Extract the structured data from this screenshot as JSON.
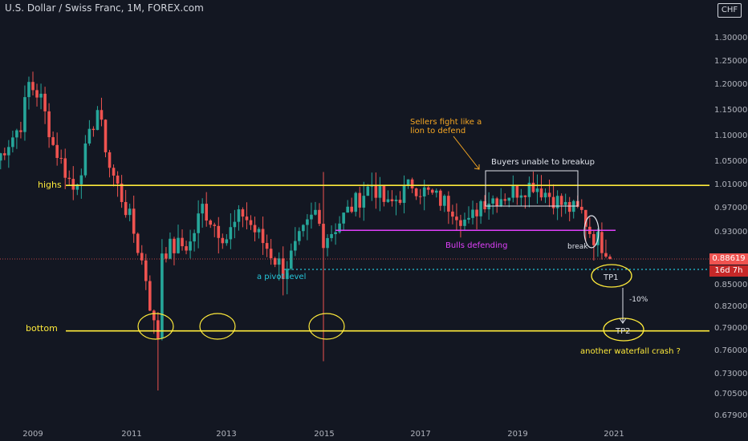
{
  "header": {
    "title": "U.S. Dollar / Swiss Franc, 1M, FOREX.com",
    "currency": "CHF"
  },
  "price_tags": {
    "last_price": "0.88619",
    "countdown": "16d 7h"
  },
  "colors": {
    "background": "#131722",
    "bull": "#26a69a",
    "bear": "#ef5350",
    "yellow": "#ffeb3b",
    "magenta": "#e040fb",
    "cyan": "#26c6da",
    "orange": "#f5a623",
    "axis_text": "#b2b5be"
  },
  "chart_data": {
    "type": "candlestick",
    "title": "U.S. Dollar / Swiss Franc, 1M, FOREX.com",
    "x_ticks": [
      "2009",
      "2011",
      "2013",
      "2015",
      "2017",
      "2019",
      "2021"
    ],
    "y_ticks": [
      "1.30000",
      "1.25000",
      "1.20000",
      "1.15000",
      "1.10000",
      "1.05000",
      "1.01000",
      "0.97000",
      "0.93000",
      "0.88619",
      "0.85000",
      "0.82000",
      "0.79000",
      "0.76000",
      "0.73000",
      "0.70500",
      "0.67900"
    ],
    "ylim": [
      0.67,
      1.33
    ],
    "grid": false,
    "anchors": [
      {
        "date": "2008-04",
        "price": 1.05
      },
      {
        "date": "2008-10",
        "price": 1.12
      },
      {
        "date": "2008-12",
        "price": 1.2
      },
      {
        "date": "2009-03",
        "price": 1.17
      },
      {
        "date": "2009-06",
        "price": 1.08
      },
      {
        "date": "2009-11",
        "price": 1.0
      },
      {
        "date": "2010-01",
        "price": 1.04
      },
      {
        "date": "2010-05",
        "price": 1.15
      },
      {
        "date": "2010-08",
        "price": 1.04
      },
      {
        "date": "2011-01",
        "price": 0.95
      },
      {
        "date": "2011-05",
        "price": 0.86
      },
      {
        "date": "2011-07",
        "price": 0.79
      },
      {
        "date": "2011-08",
        "price": 0.78
      },
      {
        "date": "2011-09",
        "price": 0.9
      },
      {
        "date": "2012-04",
        "price": 0.91
      },
      {
        "date": "2012-07",
        "price": 0.97
      },
      {
        "date": "2012-10",
        "price": 0.94
      },
      {
        "date": "2013-01",
        "price": 0.92
      },
      {
        "date": "2013-05",
        "price": 0.96
      },
      {
        "date": "2013-08",
        "price": 0.93
      },
      {
        "date": "2014-03",
        "price": 0.87
      },
      {
        "date": "2014-05",
        "price": 0.89
      },
      {
        "date": "2014-11",
        "price": 0.96
      },
      {
        "date": "2015-01",
        "price": 0.92
      },
      {
        "date": "2015-03",
        "price": 0.93
      },
      {
        "date": "2015-08",
        "price": 0.97
      },
      {
        "date": "2016-01",
        "price": 1.01
      },
      {
        "date": "2016-05",
        "price": 0.97
      },
      {
        "date": "2016-11",
        "price": 1.01
      },
      {
        "date": "2017-01",
        "price": 1.0
      },
      {
        "date": "2017-09",
        "price": 0.97
      },
      {
        "date": "2018-01",
        "price": 0.94
      },
      {
        "date": "2018-04",
        "price": 0.98
      },
      {
        "date": "2018-10",
        "price": 0.99
      },
      {
        "date": "2019-05",
        "price": 1.01
      },
      {
        "date": "2019-09",
        "price": 0.99
      },
      {
        "date": "2020-01",
        "price": 0.97
      },
      {
        "date": "2020-03",
        "price": 0.965
      },
      {
        "date": "2020-05",
        "price": 0.96
      },
      {
        "date": "2020-07",
        "price": 0.93
      },
      {
        "date": "2020-09",
        "price": 0.915
      },
      {
        "date": "2020-11",
        "price": 0.905
      },
      {
        "date": "2020-12",
        "price": 0.886
      }
    ],
    "spikes": [
      {
        "date": "2011-08",
        "low": 0.708
      },
      {
        "date": "2015-01",
        "high": 1.03,
        "low": 0.745
      }
    ],
    "levels": [
      {
        "name": "highs",
        "price": 1.007
      },
      {
        "name": "bottom",
        "price": 0.785
      },
      {
        "name": "pivot",
        "price": 0.871
      },
      {
        "name": "bulls-defending",
        "price": 0.931
      }
    ],
    "annotations": {
      "highs": "highs",
      "bottom": "bottom",
      "pivot": "a pivot level",
      "bulls": "Bulls defending",
      "sellers_1": "Sellers fight like a",
      "sellers_2": "lion to defend",
      "buyers": "Buyers unable to breakup",
      "break": "break",
      "tp1": "TP1",
      "tp2": "TP2",
      "pct": "-10%",
      "waterfall": "another waterfall crash ?"
    }
  }
}
